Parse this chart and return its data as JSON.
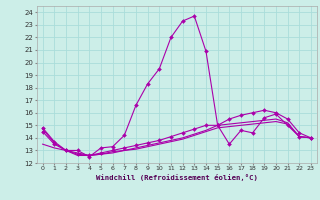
{
  "xlabel": "Windchill (Refroidissement éolien,°C)",
  "bg_color": "#cceee8",
  "grid_color": "#aaddda",
  "line_color": "#aa00aa",
  "ylim": [
    12,
    24.5
  ],
  "xlim": [
    -0.5,
    23.5
  ],
  "yticks": [
    12,
    13,
    14,
    15,
    16,
    17,
    18,
    19,
    20,
    21,
    22,
    23,
    24
  ],
  "xticks": [
    0,
    1,
    2,
    3,
    4,
    5,
    6,
    7,
    8,
    9,
    10,
    11,
    12,
    13,
    14,
    15,
    16,
    17,
    18,
    19,
    20,
    21,
    22,
    23
  ],
  "series1_x": [
    0,
    1,
    2,
    3,
    4,
    5,
    6,
    7,
    8,
    9,
    10,
    11,
    12,
    13,
    14,
    15,
    16,
    17,
    18,
    19,
    20,
    21,
    22,
    23
  ],
  "series1_y": [
    14.8,
    13.7,
    13.0,
    13.0,
    12.5,
    13.2,
    13.3,
    14.2,
    16.6,
    18.3,
    19.5,
    22.0,
    23.3,
    23.7,
    20.9,
    15.0,
    13.5,
    14.6,
    14.4,
    15.6,
    15.9,
    15.0,
    14.1,
    14.0
  ],
  "series2_x": [
    0,
    1,
    2,
    3,
    4,
    5,
    6,
    7,
    8,
    9,
    10,
    11,
    12,
    13,
    14,
    15,
    16,
    17,
    18,
    19,
    20,
    21,
    22,
    23
  ],
  "series2_y": [
    13.5,
    13.2,
    13.0,
    12.8,
    12.6,
    12.7,
    12.9,
    13.0,
    13.2,
    13.4,
    13.6,
    13.8,
    14.0,
    14.3,
    14.6,
    15.0,
    15.1,
    15.2,
    15.3,
    15.4,
    15.5,
    15.2,
    14.1,
    14.0
  ],
  "series3_x": [
    0,
    1,
    2,
    3,
    4,
    5,
    6,
    7,
    8,
    9,
    10,
    11,
    12,
    13,
    14,
    15,
    16,
    17,
    18,
    19,
    20,
    21,
    22,
    23
  ],
  "series3_y": [
    14.7,
    13.6,
    13.0,
    12.6,
    12.6,
    12.7,
    12.8,
    13.0,
    13.1,
    13.3,
    13.5,
    13.7,
    13.9,
    14.2,
    14.5,
    14.8,
    14.9,
    15.0,
    15.1,
    15.2,
    15.3,
    15.1,
    14.1,
    14.0
  ],
  "series4_x": [
    0,
    1,
    2,
    3,
    4,
    5,
    6,
    7,
    8,
    9,
    10,
    11,
    12,
    13,
    14,
    15,
    16,
    17,
    18,
    19,
    20,
    21,
    22,
    23
  ],
  "series4_y": [
    14.5,
    13.5,
    13.0,
    12.7,
    12.6,
    12.8,
    13.0,
    13.2,
    13.4,
    13.6,
    13.8,
    14.1,
    14.4,
    14.7,
    15.0,
    15.0,
    15.5,
    15.8,
    16.0,
    16.2,
    16.0,
    15.5,
    14.4,
    14.0
  ]
}
